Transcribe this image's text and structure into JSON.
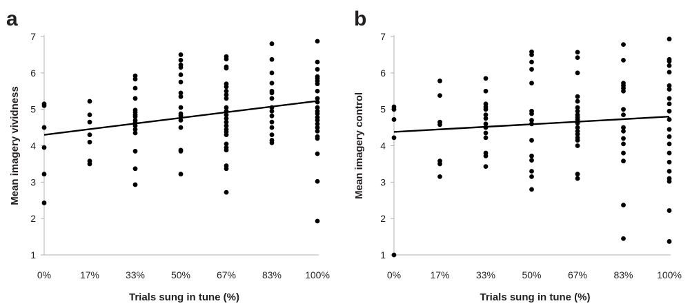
{
  "colors": {
    "points": "#000000",
    "axis": "#b3b3b3",
    "text": "#231f20"
  },
  "chart_data": [
    {
      "panel_label": "a",
      "type": "scatter",
      "xlabel": "Trials sung in tune (%)",
      "ylabel": "Mean imagery vividness",
      "categories": [
        "0%",
        "17%",
        "33%",
        "50%",
        "67%",
        "83%",
        "100%"
      ],
      "yticks": [
        "1",
        "2",
        "3",
        "4",
        "5",
        "6",
        "7"
      ],
      "ylim": [
        1,
        7
      ],
      "grid": false,
      "points": [
        [
          0,
          5.15
        ],
        [
          0,
          5.1
        ],
        [
          0,
          4.5
        ],
        [
          0,
          3.95
        ],
        [
          0,
          3.22
        ],
        [
          0,
          2.43
        ],
        [
          1,
          5.22
        ],
        [
          1,
          4.85
        ],
        [
          1,
          4.65
        ],
        [
          1,
          4.3
        ],
        [
          1,
          4.1
        ],
        [
          1,
          3.58
        ],
        [
          1,
          3.5
        ],
        [
          2,
          5.92
        ],
        [
          2,
          5.83
        ],
        [
          2,
          5.58
        ],
        [
          2,
          5.3
        ],
        [
          2,
          4.98
        ],
        [
          2,
          4.92
        ],
        [
          2,
          4.85
        ],
        [
          2,
          4.8
        ],
        [
          2,
          4.7
        ],
        [
          2,
          4.63
        ],
        [
          2,
          4.55
        ],
        [
          2,
          4.45
        ],
        [
          2,
          4.35
        ],
        [
          2,
          3.85
        ],
        [
          2,
          3.37
        ],
        [
          2,
          2.93
        ],
        [
          3,
          6.5
        ],
        [
          3,
          6.35
        ],
        [
          3,
          6.22
        ],
        [
          3,
          6.15
        ],
        [
          3,
          5.95
        ],
        [
          3,
          5.75
        ],
        [
          3,
          5.45
        ],
        [
          3,
          5.35
        ],
        [
          3,
          5.05
        ],
        [
          3,
          4.88
        ],
        [
          3,
          4.82
        ],
        [
          3,
          4.7
        ],
        [
          3,
          4.5
        ],
        [
          3,
          3.88
        ],
        [
          3,
          3.85
        ],
        [
          3,
          3.22
        ],
        [
          4,
          6.45
        ],
        [
          4,
          6.38
        ],
        [
          4,
          6.17
        ],
        [
          4,
          6.13
        ],
        [
          4,
          5.7
        ],
        [
          4,
          5.62
        ],
        [
          4,
          5.5
        ],
        [
          4,
          5.4
        ],
        [
          4,
          5.3
        ],
        [
          4,
          5.05
        ],
        [
          4,
          4.95
        ],
        [
          4,
          4.85
        ],
        [
          4,
          4.75
        ],
        [
          4,
          4.65
        ],
        [
          4,
          4.55
        ],
        [
          4,
          4.45
        ],
        [
          4,
          4.38
        ],
        [
          4,
          4.3
        ],
        [
          4,
          4.05
        ],
        [
          4,
          3.95
        ],
        [
          4,
          3.88
        ],
        [
          4,
          3.45
        ],
        [
          4,
          3.37
        ],
        [
          4,
          2.72
        ],
        [
          5,
          6.8
        ],
        [
          5,
          6.37
        ],
        [
          5,
          6.0
        ],
        [
          5,
          5.72
        ],
        [
          5,
          5.5
        ],
        [
          5,
          5.45
        ],
        [
          5,
          5.3
        ],
        [
          5,
          5.05
        ],
        [
          5,
          4.95
        ],
        [
          5,
          4.82
        ],
        [
          5,
          4.65
        ],
        [
          5,
          4.5
        ],
        [
          5,
          4.3
        ],
        [
          5,
          4.15
        ],
        [
          5,
          4.08
        ],
        [
          6,
          6.87
        ],
        [
          6,
          6.3
        ],
        [
          6,
          6.1
        ],
        [
          6,
          5.9
        ],
        [
          6,
          5.85
        ],
        [
          6,
          5.78
        ],
        [
          6,
          5.7
        ],
        [
          6,
          5.5
        ],
        [
          6,
          5.3
        ],
        [
          6,
          5.2
        ],
        [
          6,
          5.05
        ],
        [
          6,
          4.95
        ],
        [
          6,
          4.88
        ],
        [
          6,
          4.78
        ],
        [
          6,
          4.7
        ],
        [
          6,
          4.6
        ],
        [
          6,
          4.5
        ],
        [
          6,
          4.4
        ],
        [
          6,
          4.25
        ],
        [
          6,
          4.2
        ],
        [
          6,
          3.78
        ],
        [
          6,
          3.02
        ],
        [
          6,
          1.93
        ]
      ],
      "trendline": {
        "start": 4.3,
        "end": 5.23
      }
    },
    {
      "panel_label": "b",
      "type": "scatter",
      "xlabel": "Trials sung in tune (%)",
      "ylabel": "Mean imagery control",
      "categories": [
        "0%",
        "17%",
        "33%",
        "50%",
        "67%",
        "83%",
        "100%"
      ],
      "yticks": [
        "1",
        "2",
        "3",
        "4",
        "5",
        "6",
        "7"
      ],
      "ylim": [
        1,
        7
      ],
      "grid": false,
      "points": [
        [
          0,
          5.07
        ],
        [
          0,
          5.0
        ],
        [
          0,
          4.72
        ],
        [
          0,
          4.22
        ],
        [
          0,
          1.0
        ],
        [
          1,
          5.78
        ],
        [
          1,
          5.38
        ],
        [
          1,
          4.65
        ],
        [
          1,
          4.58
        ],
        [
          1,
          3.58
        ],
        [
          1,
          3.5
        ],
        [
          1,
          3.15
        ],
        [
          2,
          5.85
        ],
        [
          2,
          5.5
        ],
        [
          2,
          5.15
        ],
        [
          2,
          5.07
        ],
        [
          2,
          5.0
        ],
        [
          2,
          4.85
        ],
        [
          2,
          4.75
        ],
        [
          2,
          4.6
        ],
        [
          2,
          4.5
        ],
        [
          2,
          4.35
        ],
        [
          2,
          4.22
        ],
        [
          2,
          3.8
        ],
        [
          2,
          3.72
        ],
        [
          2,
          3.43
        ],
        [
          3,
          6.58
        ],
        [
          3,
          6.5
        ],
        [
          3,
          6.3
        ],
        [
          3,
          6.1
        ],
        [
          3,
          5.72
        ],
        [
          3,
          4.95
        ],
        [
          3,
          4.88
        ],
        [
          3,
          4.7
        ],
        [
          3,
          4.6
        ],
        [
          3,
          4.15
        ],
        [
          3,
          3.72
        ],
        [
          3,
          3.6
        ],
        [
          3,
          3.3
        ],
        [
          3,
          3.15
        ],
        [
          3,
          2.8
        ],
        [
          4,
          6.57
        ],
        [
          4,
          6.42
        ],
        [
          4,
          6.0
        ],
        [
          4,
          5.35
        ],
        [
          4,
          5.22
        ],
        [
          4,
          5.05
        ],
        [
          4,
          4.95
        ],
        [
          4,
          4.85
        ],
        [
          4,
          4.78
        ],
        [
          4,
          4.72
        ],
        [
          4,
          4.62
        ],
        [
          4,
          4.5
        ],
        [
          4,
          4.4
        ],
        [
          4,
          4.32
        ],
        [
          4,
          4.22
        ],
        [
          4,
          4.15
        ],
        [
          4,
          4.0
        ],
        [
          4,
          3.22
        ],
        [
          4,
          3.1
        ],
        [
          5,
          6.78
        ],
        [
          5,
          6.35
        ],
        [
          5,
          5.72
        ],
        [
          5,
          5.65
        ],
        [
          5,
          5.58
        ],
        [
          5,
          5.5
        ],
        [
          5,
          5.0
        ],
        [
          5,
          4.85
        ],
        [
          5,
          4.5
        ],
        [
          5,
          4.4
        ],
        [
          5,
          4.2
        ],
        [
          5,
          4.05
        ],
        [
          5,
          3.8
        ],
        [
          5,
          3.58
        ],
        [
          5,
          2.37
        ],
        [
          5,
          1.45
        ],
        [
          6,
          6.93
        ],
        [
          6,
          6.37
        ],
        [
          6,
          6.32
        ],
        [
          6,
          6.2
        ],
        [
          6,
          6.02
        ],
        [
          6,
          5.65
        ],
        [
          6,
          5.55
        ],
        [
          6,
          5.3
        ],
        [
          6,
          5.15
        ],
        [
          6,
          4.95
        ],
        [
          6,
          4.72
        ],
        [
          6,
          4.45
        ],
        [
          6,
          4.25
        ],
        [
          6,
          4.05
        ],
        [
          6,
          3.8
        ],
        [
          6,
          3.55
        ],
        [
          6,
          3.3
        ],
        [
          6,
          3.1
        ],
        [
          6,
          3.02
        ],
        [
          6,
          2.22
        ],
        [
          6,
          1.37
        ]
      ],
      "trendline": {
        "start": 4.38,
        "end": 4.8
      }
    }
  ]
}
